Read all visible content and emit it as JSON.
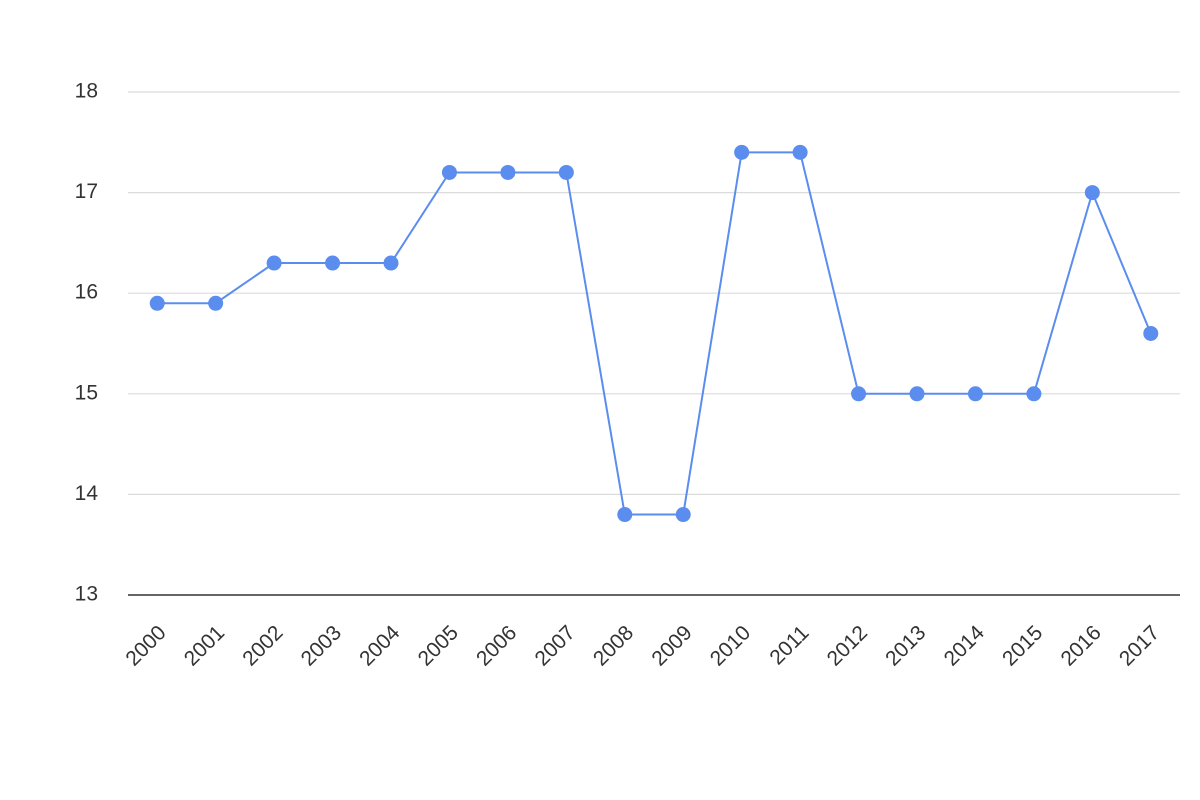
{
  "chart_data": {
    "type": "line",
    "categories": [
      "2000",
      "2001",
      "2002",
      "2003",
      "2004",
      "2005",
      "2006",
      "2007",
      "2008",
      "2009",
      "2010",
      "2011",
      "2012",
      "2013",
      "2014",
      "2015",
      "2016",
      "2017"
    ],
    "values": [
      15.9,
      15.9,
      16.3,
      16.3,
      16.3,
      17.2,
      17.2,
      17.2,
      13.8,
      13.8,
      17.4,
      17.4,
      15.0,
      15.0,
      15.0,
      15.0,
      17.0,
      15.6
    ],
    "color": "#5b8def",
    "ylim": [
      13,
      18
    ],
    "yticks": [
      13,
      14,
      15,
      16,
      17,
      18
    ],
    "grid": true
  }
}
